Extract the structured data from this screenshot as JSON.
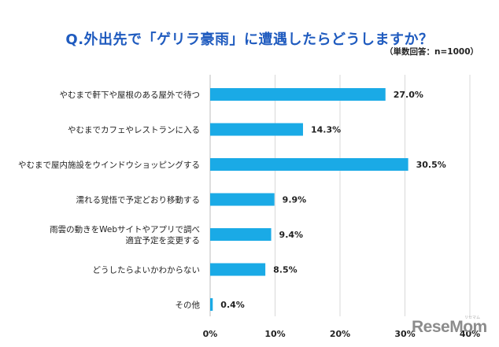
{
  "chart_data": {
    "type": "bar",
    "orientation": "horizontal",
    "title": "Q.外出先で「ゲリラ豪雨」に遭遇したらどうしますか？",
    "subtitle": "（単数回答：n=1000）",
    "categories": [
      [
        "やむまで軒下や屋根のある屋外で待つ"
      ],
      [
        "やむまでカフェやレストランに入る"
      ],
      [
        "やむまで屋内施設をウインドウショッピングする"
      ],
      [
        "濡れる覚悟で予定どおり移動する"
      ],
      [
        "雨雲の動きをWebサイトやアプリで調べ",
        "適宜予定を変更する"
      ],
      [
        "どうしたらよいかわからない"
      ],
      [
        "その他"
      ]
    ],
    "values": [
      27.0,
      14.3,
      30.5,
      9.9,
      9.4,
      8.5,
      0.4
    ],
    "value_labels": [
      "27.0%",
      "14.3%",
      "30.5%",
      "9.9%",
      "9.4%",
      "8.5%",
      "0.4%"
    ],
    "xlim": [
      0,
      40
    ],
    "ticks": [
      0,
      10,
      20,
      30,
      40
    ],
    "tick_labels": [
      "0%",
      "10%",
      "20%",
      "30%",
      "40%"
    ],
    "bar_color": "#1aaae6",
    "grid": true
  },
  "watermark": "ReseMom",
  "watermark_sub": "リセマム"
}
